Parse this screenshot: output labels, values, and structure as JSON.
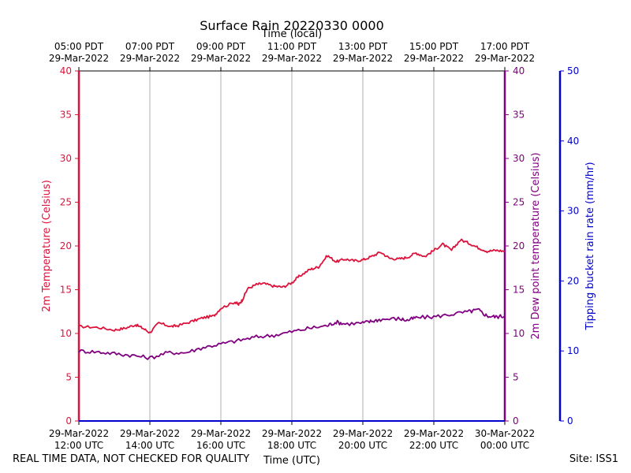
{
  "chart_data": {
    "type": "line",
    "title": "Surface Rain 20220330 0000",
    "top_axis_label": "Time (local)",
    "xlabel": "Time (UTC)",
    "ylabel_left": "2m Temperature (Celsius)",
    "ylabel_right": "2m Dew point temperature (Celsius)",
    "ylabel_rain": "Tipping bucket rain rate (mm/hr)",
    "x_range_utc_hours": [
      12,
      24
    ],
    "ylim": [
      0,
      40
    ],
    "rain_ylim": [
      0,
      50
    ],
    "grid": "vertical at x ticks",
    "bottom_ticks": [
      {
        "hour": 12,
        "date": "29-Mar-2022",
        "time": "12:00 UTC"
      },
      {
        "hour": 14,
        "date": "29-Mar-2022",
        "time": "14:00 UTC"
      },
      {
        "hour": 16,
        "date": "29-Mar-2022",
        "time": "16:00 UTC"
      },
      {
        "hour": 18,
        "date": "29-Mar-2022",
        "time": "18:00 UTC"
      },
      {
        "hour": 20,
        "date": "29-Mar-2022",
        "time": "20:00 UTC"
      },
      {
        "hour": 22,
        "date": "29-Mar-2022",
        "time": "22:00 UTC"
      },
      {
        "hour": 24,
        "date": "30-Mar-2022",
        "time": "00:00 UTC"
      }
    ],
    "top_ticks": [
      {
        "hour": 12,
        "time": "05:00 PDT",
        "date": "29-Mar-2022"
      },
      {
        "hour": 14,
        "time": "07:00 PDT",
        "date": "29-Mar-2022"
      },
      {
        "hour": 16,
        "time": "09:00 PDT",
        "date": "29-Mar-2022"
      },
      {
        "hour": 18,
        "time": "11:00 PDT",
        "date": "29-Mar-2022"
      },
      {
        "hour": 20,
        "time": "13:00 PDT",
        "date": "29-Mar-2022"
      },
      {
        "hour": 22,
        "time": "15:00 PDT",
        "date": "29-Mar-2022"
      },
      {
        "hour": 24,
        "time": "17:00 PDT",
        "date": "29-Mar-2022"
      }
    ],
    "y_ticks": [
      0,
      5,
      10,
      15,
      20,
      25,
      30,
      35,
      40
    ],
    "rain_ticks": [
      0,
      10,
      20,
      30,
      40,
      50
    ],
    "series": [
      {
        "key": "temperature",
        "color": "#dc143c",
        "x": [
          12.0,
          12.5,
          13.0,
          13.3,
          13.6,
          13.8,
          14.0,
          14.25,
          14.6,
          14.8,
          15.2,
          15.5,
          15.8,
          16.0,
          16.4,
          16.5,
          16.6,
          16.75,
          17.0,
          17.2,
          17.5,
          17.75,
          18.0,
          18.2,
          18.5,
          18.75,
          19.0,
          19.25,
          19.5,
          19.75,
          20.0,
          20.25,
          20.5,
          20.75,
          21.0,
          21.25,
          21.5,
          21.75,
          22.0,
          22.25,
          22.5,
          22.75,
          23.0,
          23.25,
          23.5,
          23.75,
          24.0
        ],
        "values": [
          10.8,
          10.7,
          10.4,
          10.6,
          11.0,
          10.6,
          10.1,
          11.2,
          10.8,
          10.9,
          11.4,
          11.8,
          12.0,
          12.9,
          13.6,
          13.3,
          13.8,
          15.1,
          15.6,
          15.7,
          15.4,
          15.3,
          15.8,
          16.5,
          17.3,
          17.6,
          18.9,
          18.2,
          18.5,
          18.3,
          18.4,
          18.8,
          19.3,
          18.6,
          18.5,
          18.7,
          19.2,
          18.8,
          19.5,
          20.2,
          19.5,
          20.7,
          20.3,
          19.8,
          19.4,
          19.5,
          19.4
        ]
      },
      {
        "key": "dewpoint",
        "color": "#800080",
        "x": [
          12.0,
          12.5,
          13.0,
          13.5,
          14.0,
          14.5,
          15.0,
          15.5,
          16.0,
          16.5,
          17.0,
          17.5,
          18.0,
          18.5,
          19.0,
          19.25,
          19.5,
          20.0,
          20.25,
          20.5,
          21.0,
          21.25,
          21.5,
          22.0,
          22.5,
          23.0,
          23.25,
          23.5,
          23.75,
          24.0
        ],
        "values": [
          8.0,
          7.9,
          7.7,
          7.5,
          7.2,
          7.8,
          7.8,
          8.4,
          8.8,
          9.2,
          9.6,
          9.8,
          10.2,
          10.6,
          10.9,
          11.3,
          11.1,
          11.2,
          11.4,
          11.6,
          11.7,
          11.5,
          11.8,
          11.9,
          12.2,
          12.5,
          12.7,
          12.0,
          11.9,
          12.0
        ]
      },
      {
        "key": "rain",
        "color": "#0000cd",
        "x": [
          12.0,
          24.0
        ],
        "values": [
          0,
          0
        ]
      }
    ],
    "colors": {
      "temperature_axis": "#dc143c",
      "dewpoint_axis": "#800080",
      "rain_axis": "#0000cd",
      "grid": "#b0b0b0"
    }
  },
  "footer": {
    "left": "REAL TIME DATA, NOT CHECKED FOR QUALITY",
    "right": "Site: ISS1"
  }
}
